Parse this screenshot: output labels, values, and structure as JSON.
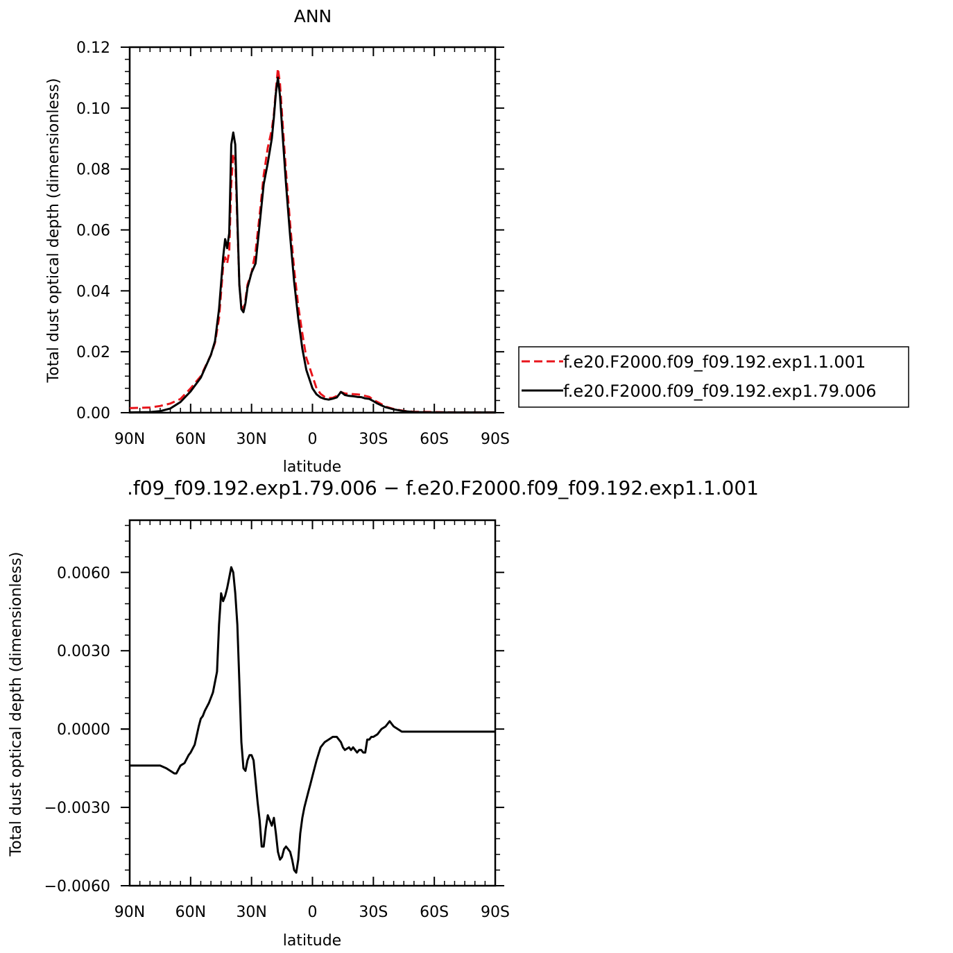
{
  "chart_data": [
    {
      "type": "line",
      "title": "ANN",
      "xlabel": "latitude",
      "ylabel": "Total dust optical depth (dimensionless)",
      "xlim": [
        90,
        -90
      ],
      "ylim": [
        0,
        0.12
      ],
      "x_ticks": [
        90,
        60,
        30,
        0,
        -30,
        -60,
        -90
      ],
      "x_tick_labels": [
        "90N",
        "60N",
        "30N",
        "0",
        "30S",
        "60S",
        "90S"
      ],
      "y_ticks": [
        0,
        0.02,
        0.04,
        0.06,
        0.08,
        0.1,
        0.12
      ],
      "y_tick_labels": [
        "0.00",
        "0.02",
        "0.04",
        "0.06",
        "0.08",
        "0.10",
        "0.12"
      ],
      "legend_position": "right",
      "series": [
        {
          "name": "f.e20.F2000.f09_f09.192.exp1.1.001",
          "color": "#e8141b",
          "dash": "dashed",
          "x": [
            90,
            80,
            75,
            70,
            65,
            60,
            55,
            50,
            48,
            46,
            44,
            43,
            42,
            41,
            40,
            39,
            38,
            37,
            36,
            35,
            34,
            33,
            32,
            30,
            28,
            26,
            24,
            22,
            20,
            19,
            18,
            17,
            16,
            15,
            13,
            11,
            9,
            7,
            5,
            3,
            1,
            0,
            -2,
            -4,
            -6,
            -8,
            -10,
            -12,
            -14,
            -16,
            -18,
            -20,
            -22,
            -24,
            -26,
            -28,
            -30,
            -32,
            -34,
            -36,
            -40,
            -45,
            -50,
            -60,
            -70,
            -80,
            -90
          ],
          "y": [
            0.0015,
            0.0017,
            0.0022,
            0.003,
            0.0045,
            0.008,
            0.012,
            0.019,
            0.023,
            0.031,
            0.048,
            0.051,
            0.049,
            0.053,
            0.075,
            0.085,
            0.083,
            0.062,
            0.042,
            0.035,
            0.034,
            0.037,
            0.042,
            0.046,
            0.053,
            0.065,
            0.078,
            0.087,
            0.093,
            0.098,
            0.106,
            0.113,
            0.108,
            0.098,
            0.079,
            0.062,
            0.047,
            0.035,
            0.026,
            0.018,
            0.014,
            0.012,
            0.008,
            0.0062,
            0.0052,
            0.0048,
            0.0049,
            0.0055,
            0.0068,
            0.0063,
            0.0062,
            0.0061,
            0.006,
            0.0059,
            0.0055,
            0.0052,
            0.0042,
            0.0035,
            0.0028,
            0.002,
            0.0012,
            0.0006,
            0.0003,
            0.0002,
            0.0001,
            0.0001,
            0.0001
          ]
        },
        {
          "name": "f.e20.F2000.f09_f09.192.exp1.79.006",
          "color": "#000000",
          "dash": "solid",
          "x": [
            90,
            80,
            75,
            70,
            65,
            60,
            55,
            50,
            48,
            46,
            44,
            43,
            42,
            41,
            40,
            39,
            38,
            37,
            36,
            35,
            34,
            33,
            32,
            30,
            28,
            26,
            24,
            22,
            20,
            19,
            18,
            17,
            16,
            15,
            13,
            11,
            9,
            7,
            5,
            3,
            1,
            0,
            -2,
            -4,
            -6,
            -8,
            -10,
            -12,
            -14,
            -16,
            -18,
            -20,
            -22,
            -24,
            -26,
            -28,
            -30,
            -32,
            -34,
            -36,
            -40,
            -45,
            -50,
            -60,
            -70,
            -80,
            -90
          ],
          "y": [
            0.0001,
            0.0002,
            0.0005,
            0.0014,
            0.0035,
            0.007,
            0.0115,
            0.019,
            0.0235,
            0.034,
            0.051,
            0.057,
            0.054,
            0.059,
            0.088,
            0.092,
            0.088,
            0.064,
            0.042,
            0.034,
            0.033,
            0.036,
            0.041,
            0.046,
            0.049,
            0.062,
            0.075,
            0.082,
            0.09,
            0.097,
            0.105,
            0.11,
            0.104,
            0.094,
            0.075,
            0.058,
            0.043,
            0.031,
            0.021,
            0.014,
            0.01,
            0.008,
            0.006,
            0.005,
            0.0045,
            0.0043,
            0.0046,
            0.005,
            0.0068,
            0.0058,
            0.0055,
            0.0054,
            0.0052,
            0.0051,
            0.0047,
            0.0045,
            0.0038,
            0.003,
            0.0024,
            0.0018,
            0.0011,
            0.0005,
            0.0002,
            0.0001,
            0.0001,
            0.0001,
            0.0001
          ]
        }
      ]
    },
    {
      "type": "line",
      "title": ".f09_f09.192.exp1.79.006 − f.e20.F2000.f09_f09.192.exp1.1.001",
      "xlabel": "latitude",
      "ylabel": "Total dust optical depth (dimensionless)",
      "xlim": [
        90,
        -90
      ],
      "ylim": [
        -0.006,
        0.008
      ],
      "x_ticks": [
        90,
        60,
        30,
        0,
        -30,
        -60,
        -90
      ],
      "x_tick_labels": [
        "90N",
        "60N",
        "30N",
        "0",
        "30S",
        "60S",
        "90S"
      ],
      "y_ticks": [
        -0.006,
        -0.003,
        0,
        0.003,
        0.006
      ],
      "y_tick_labels": [
        "−0.0060",
        "−0.0030",
        "0.0000",
        "0.0030",
        "0.0060"
      ],
      "series": [
        {
          "color": "#000000",
          "dash": "solid",
          "x": [
            90,
            85,
            80,
            75,
            72,
            70,
            68,
            67,
            65,
            63,
            61,
            60,
            58,
            56,
            55,
            54,
            53,
            51,
            49,
            47,
            46,
            45,
            44,
            43,
            42,
            41,
            40,
            39,
            38,
            37,
            36,
            35,
            34,
            33,
            32,
            31,
            30,
            29,
            28,
            27,
            26,
            25,
            24,
            23,
            22,
            21,
            20,
            19,
            18,
            17,
            16,
            15,
            14,
            13,
            12,
            11,
            10,
            9,
            8,
            7,
            6,
            5,
            4,
            3,
            2,
            1,
            0,
            -2,
            -4,
            -6,
            -8,
            -10,
            -12,
            -14,
            -15,
            -16,
            -18,
            -19,
            -20,
            -21,
            -22,
            -23,
            -24,
            -25,
            -26,
            -27,
            -28,
            -29,
            -30,
            -32,
            -34,
            -36,
            -37,
            -38,
            -39,
            -40,
            -42,
            -44,
            -46,
            -48,
            -50,
            -55,
            -60,
            -70,
            -80,
            -90
          ],
          "y": [
            -0.0014,
            -0.0014,
            -0.0014,
            -0.0014,
            -0.0015,
            -0.0016,
            -0.0017,
            -0.0017,
            -0.0014,
            -0.0013,
            -0.001,
            -0.0009,
            -0.0006,
            0.0001,
            0.0004,
            0.0005,
            0.0007,
            0.001,
            0.0014,
            0.0022,
            0.004,
            0.0052,
            0.0049,
            0.0051,
            0.0054,
            0.0058,
            0.0062,
            0.006,
            0.0052,
            0.004,
            0.0018,
            -0.0005,
            -0.0015,
            -0.0016,
            -0.0012,
            -0.001,
            -0.001,
            -0.0012,
            -0.002,
            -0.0028,
            -0.0035,
            -0.0045,
            -0.0045,
            -0.0038,
            -0.0033,
            -0.0035,
            -0.0037,
            -0.0034,
            -0.004,
            -0.0047,
            -0.005,
            -0.0049,
            -0.0046,
            -0.0045,
            -0.0046,
            -0.0047,
            -0.005,
            -0.0054,
            -0.0055,
            -0.005,
            -0.004,
            -0.0034,
            -0.003,
            -0.0027,
            -0.0024,
            -0.0021,
            -0.0018,
            -0.0012,
            -0.0007,
            -0.0005,
            -0.0004,
            -0.0003,
            -0.0003,
            -0.0005,
            -0.0007,
            -0.0008,
            -0.0007,
            -0.0008,
            -0.0007,
            -0.0008,
            -0.0009,
            -0.0008,
            -0.0008,
            -0.0009,
            -0.0009,
            -0.0004,
            -0.0004,
            -0.0003,
            -0.0003,
            -0.0002,
            0.0,
            0.0001,
            0.0002,
            0.0003,
            0.0002,
            0.0001,
            0.0,
            -0.0001,
            -0.0001,
            -0.0001,
            -0.0001,
            -0.0001,
            -0.0001,
            -0.0001,
            -0.0001,
            -0.0001
          ]
        }
      ]
    }
  ]
}
